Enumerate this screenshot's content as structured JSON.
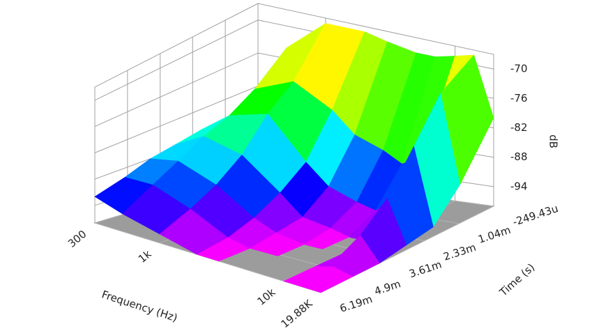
{
  "chart_data": {
    "type": "surface",
    "xlabel": "Frequency (Hz)",
    "ylabel": "Time (s)",
    "zlabel": "dB",
    "log_x": true,
    "grid": true,
    "x": [
      300,
      500,
      1000,
      2000,
      3000,
      5000,
      7000,
      10000,
      14000,
      19880
    ],
    "y": [
      -0.00024943,
      0.001,
      0.002,
      0.003,
      0.004,
      0.005,
      0.00619
    ],
    "values": [
      [
        -88,
        -74,
        -68,
        -68,
        -69,
        -70,
        -70,
        -69,
        -68,
        -80
      ],
      [
        -86,
        -79,
        -76,
        -80,
        -84,
        -86,
        -88,
        -86,
        -72,
        -90
      ],
      [
        -86,
        -82,
        -80,
        -88,
        -92,
        -94,
        -95,
        -92,
        -80,
        -96
      ],
      [
        -87,
        -84,
        -86,
        -92,
        -96,
        -97,
        -98,
        -98,
        -88,
        -97
      ],
      [
        -88,
        -87,
        -90,
        -95,
        -97,
        -98,
        -98,
        -98,
        -93,
        -98
      ],
      [
        -90,
        -90,
        -93,
        -97,
        -98,
        -98,
        -98,
        -98,
        -97,
        -98
      ],
      [
        -92,
        -94,
        -96,
        -98,
        -98,
        -98,
        -98,
        -98,
        -98,
        -98
      ]
    ],
    "xlim": [
      300,
      19880
    ],
    "xticks": [
      300,
      {
        "value": 1000,
        "label": "1k"
      },
      {
        "value": 10000,
        "label": "10k"
      },
      {
        "value": 19880,
        "label": "19.88K"
      }
    ],
    "ylim": [
      -0.00024943,
      0.00619
    ],
    "yticks": [
      {
        "value": -0.00024943,
        "label": "-249.43u"
      },
      {
        "value": 0.00104,
        "label": "1.04m"
      },
      {
        "value": 0.00233,
        "label": "2.33m"
      },
      {
        "value": 0.00361,
        "label": "3.61m"
      },
      {
        "value": 0.0049,
        "label": "4.9m"
      },
      {
        "value": 0.00619,
        "label": "6.19m"
      }
    ],
    "zlim": [
      -98,
      -67
    ],
    "zticks": [
      -70,
      -76,
      -82,
      -88,
      -94
    ],
    "floor_color": "#9c9c9c"
  }
}
